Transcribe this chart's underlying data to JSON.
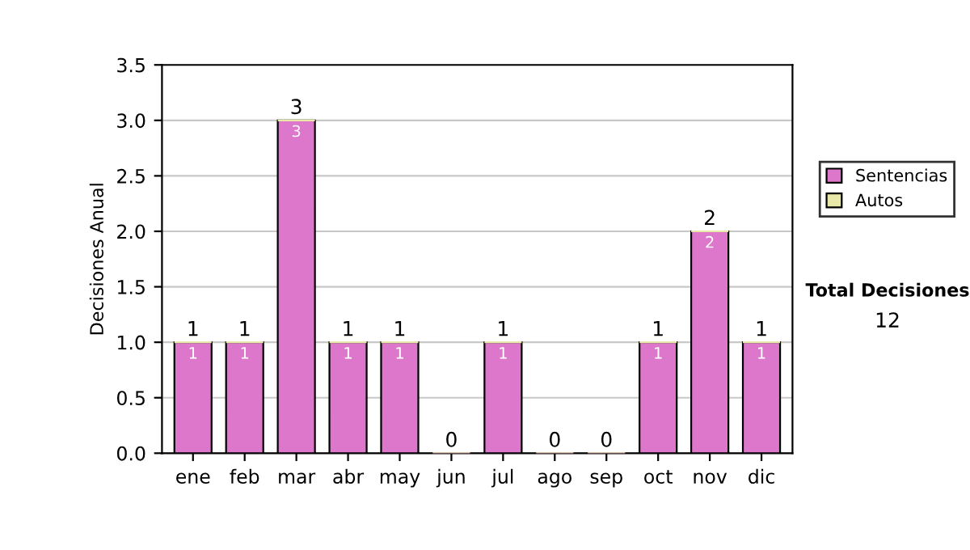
{
  "chart_data": {
    "type": "bar",
    "stacked": true,
    "ylabel": "Decisiones Anual",
    "categories": [
      "ene",
      "feb",
      "mar",
      "abr",
      "may",
      "jun",
      "jul",
      "ago",
      "sep",
      "oct",
      "nov",
      "dic"
    ],
    "series": [
      {
        "name": "Sentencias",
        "color": "#dd77cc",
        "values": [
          1,
          1,
          3,
          1,
          1,
          0,
          1,
          0,
          0,
          1,
          2,
          1
        ],
        "value_labels": [
          "1",
          "1",
          "3",
          "1",
          "1",
          null,
          "1",
          null,
          null,
          "1",
          "2",
          "1"
        ]
      },
      {
        "name": "Autos",
        "color": "#e8e8a8",
        "values": [
          0,
          0,
          0,
          0,
          0,
          0,
          0,
          0,
          0,
          0,
          0,
          0
        ]
      }
    ],
    "totals": [
      "1",
      "1",
      "3",
      "1",
      "1",
      "0",
      "1",
      "0",
      "0",
      "1",
      "2",
      "1"
    ],
    "ylim": [
      0,
      3.5
    ],
    "yticks": [
      {
        "value": 0,
        "label": "0.0"
      },
      {
        "value": 0.5,
        "label": "0.5"
      },
      {
        "value": 1,
        "label": "1.0"
      },
      {
        "value": 1.5,
        "label": "1.5"
      },
      {
        "value": 2,
        "label": "2.0"
      },
      {
        "value": 2.5,
        "label": "2.5"
      },
      {
        "value": 3,
        "label": "3.0"
      },
      {
        "value": 3.5,
        "label": "3.5"
      }
    ],
    "grid": "y",
    "legend": "right",
    "annotations": [
      "Total Decisiones",
      "12"
    ]
  }
}
